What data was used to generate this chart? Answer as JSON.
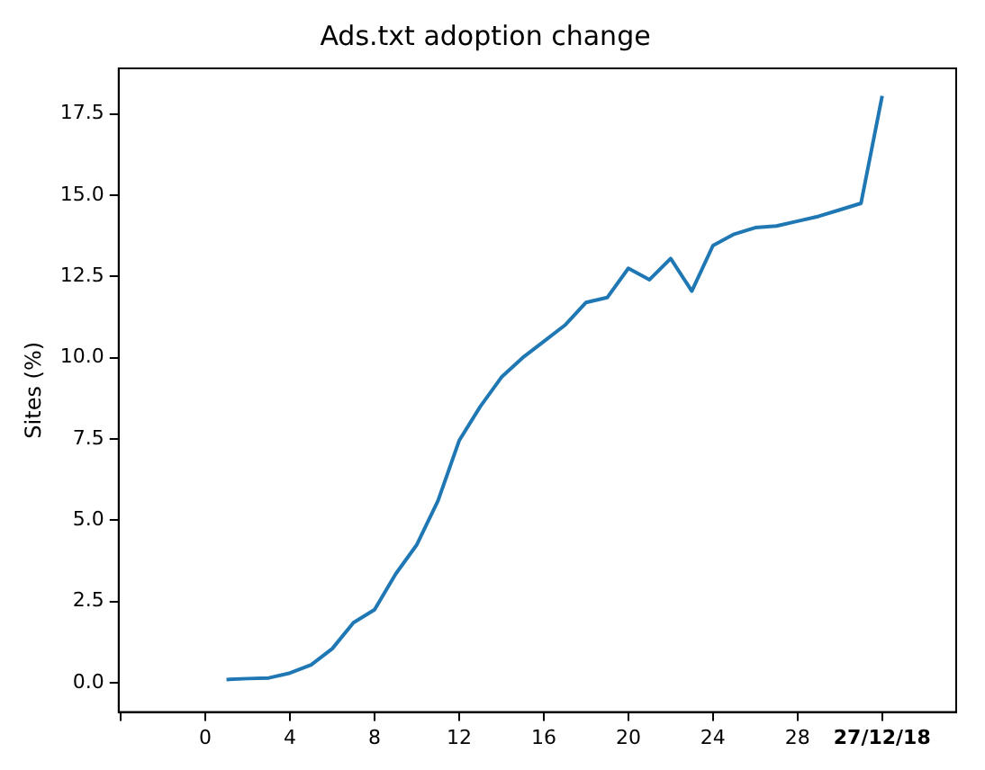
{
  "chart_data": {
    "type": "line",
    "title": "Ads.txt adoption change",
    "ylabel": "Sites (%)",
    "x": [
      1,
      2,
      3,
      4,
      5,
      6,
      7,
      8,
      9,
      10,
      11,
      12,
      13,
      14,
      15,
      16,
      17,
      18,
      19,
      20,
      21,
      22,
      23,
      24,
      25,
      26,
      27,
      28,
      29,
      30,
      31,
      32
    ],
    "series": [
      {
        "color": "#1f77b4",
        "values": [
          0.1,
          0.13,
          0.15,
          0.3,
          0.55,
          1.05,
          1.85,
          2.25,
          3.35,
          4.25,
          5.6,
          7.45,
          8.5,
          9.4,
          10.0,
          10.5,
          11.0,
          11.7,
          11.85,
          12.75,
          12.4,
          13.05,
          12.05,
          13.45,
          13.8,
          14.0,
          14.05,
          14.2,
          14.35,
          14.55,
          14.75,
          18.05
        ]
      }
    ],
    "xlim": [
      -4.1,
      35.5
    ],
    "xticks": [
      {
        "value": -4,
        "label": null
      },
      0,
      4,
      8,
      12,
      16,
      20,
      24,
      28,
      {
        "value": 32,
        "label": "27/12/18"
      }
    ],
    "ylim": [
      -0.9,
      18.9
    ],
    "yticks": [
      {
        "value": 0,
        "label": "0.0"
      },
      2.5,
      {
        "value": 5,
        "label": "5.0"
      },
      7.5,
      {
        "value": 10,
        "label": "10.0"
      },
      12.5,
      {
        "value": 15,
        "label": "15.0"
      },
      17.5
    ],
    "grid": false,
    "legend": false,
    "marker": "none",
    "line_style": "solid"
  }
}
